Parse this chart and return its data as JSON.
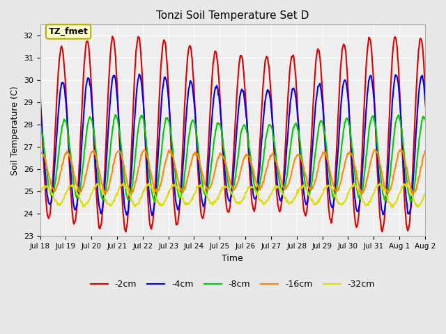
{
  "title": "Tonzi Soil Temperature Set D",
  "xlabel": "Time",
  "ylabel": "Soil Temperature (C)",
  "ylim": [
    23.0,
    32.5
  ],
  "yticks": [
    23.0,
    24.0,
    25.0,
    26.0,
    27.0,
    28.0,
    29.0,
    30.0,
    31.0,
    32.0
  ],
  "annotation_text": "TZ_fmet",
  "annotation_bg": "#ffffcc",
  "annotation_border": "#bbaa00",
  "fig_bg": "#e8e8e8",
  "plot_bg": "#eeeeee",
  "series": [
    {
      "label": "-2cm",
      "color": "#dd0000",
      "amplitude": 3.9,
      "base": 27.6,
      "phase": 0.0,
      "lw": 1.5
    },
    {
      "label": "-4cm",
      "color": "#0000ee",
      "amplitude": 2.8,
      "base": 27.1,
      "phase": 0.25,
      "lw": 1.5
    },
    {
      "label": "-8cm",
      "color": "#00cc00",
      "amplitude": 1.7,
      "base": 26.5,
      "phase": 0.75,
      "lw": 1.5
    },
    {
      "label": "-16cm",
      "color": "#ff8800",
      "amplitude": 0.85,
      "base": 25.9,
      "phase": 1.4,
      "lw": 1.5
    },
    {
      "label": "-32cm",
      "color": "#dddd00",
      "amplitude": 0.42,
      "base": 24.85,
      "phase": 2.5,
      "lw": 1.5
    }
  ],
  "xtick_labels": [
    "Jul 18",
    "Jul 19",
    "Jul 20",
    "Jul 21",
    "Jul 22",
    "Jul 23",
    "Jul 24",
    "Jul 25",
    "Jul 26",
    "Jul 27",
    "Jul 28",
    "Jul 29",
    "Jul 30",
    "Jul 31",
    "Aug 1",
    "Aug 2"
  ],
  "num_days": 16,
  "points_per_day": 48
}
